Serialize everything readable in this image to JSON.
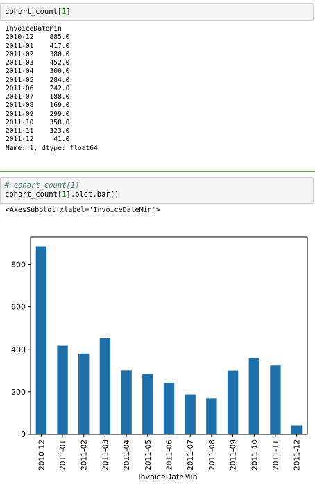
{
  "cell1": {
    "code_prefix": "cohort_count[",
    "code_num": "1",
    "code_suffix": "]",
    "output_header": "InvoiceDateMin",
    "rows": [
      "2010-12    885.0",
      "2011-01    417.0",
      "2011-02    380.0",
      "2011-03    452.0",
      "2011-04    300.0",
      "2011-05    284.0",
      "2011-06    242.0",
      "2011-07    188.0",
      "2011-08    169.0",
      "2011-09    299.0",
      "2011-10    358.0",
      "2011-11    323.0",
      "2011-12     41.0"
    ],
    "footer": "Name: 1, dtype: float64"
  },
  "cell2": {
    "comment": "# cohort_count[1]",
    "code_prefix": "cohort_count[",
    "code_num": "1",
    "code_suffix": "].plot.bar()",
    "output_repr": "<AxesSubplot:xlabel='InvoiceDateMin'>"
  },
  "colors": {
    "bar": "#1f6fa8",
    "separator": "#4caf50",
    "cell_bg": "#f5f5f5"
  },
  "chart_data": {
    "type": "bar",
    "categories": [
      "2010-12",
      "2011-01",
      "2011-02",
      "2011-03",
      "2011-04",
      "2011-05",
      "2011-06",
      "2011-07",
      "2011-08",
      "2011-09",
      "2011-10",
      "2011-11",
      "2011-12"
    ],
    "values": [
      885,
      417,
      380,
      452,
      300,
      284,
      242,
      188,
      169,
      299,
      358,
      323,
      41
    ],
    "xlabel": "InvoiceDateMin",
    "ylabel": "",
    "yticks": [
      0,
      200,
      400,
      600,
      800
    ],
    "ytick_labels": [
      "0",
      "200",
      "400",
      "600",
      "800"
    ],
    "ylim": [
      0,
      929.25
    ],
    "grid": false,
    "legend": "none"
  }
}
